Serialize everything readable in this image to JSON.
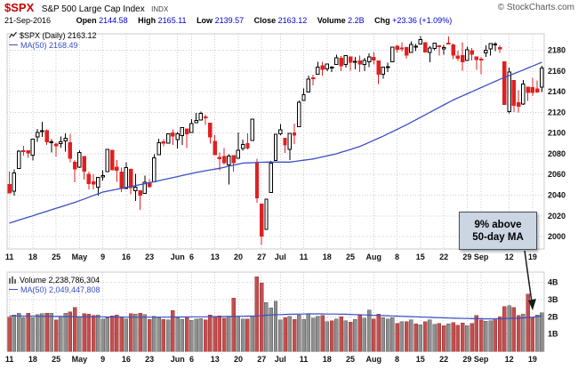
{
  "header": {
    "symbol": "$SPX",
    "name": "S&P 500 Large Cap Index",
    "exchange": "INDX",
    "copyright": "© StockCharts.com",
    "date": "21-Sep-2016",
    "quote": [
      {
        "label": "Open",
        "value": "2144.58"
      },
      {
        "label": "High",
        "value": "2165.11"
      },
      {
        "label": "Low",
        "value": "2139.57"
      },
      {
        "label": "Close",
        "value": "2163.12"
      },
      {
        "label": "Volume",
        "value": "2.2B"
      },
      {
        "label": "Chg",
        "value": "+23.36 (+1.09%)"
      }
    ]
  },
  "price_legend": {
    "series": "$SPX (Daily) 2163.12",
    "ma": "MA(50) 2168.49"
  },
  "volume_legend": {
    "series": "Volume 2,238,786,304",
    "ma": "MA(50) 2,049,447,808"
  },
  "annotation": {
    "line1": "9% above",
    "line2": "50-day MA"
  },
  "colors": {
    "grid": "#cccccc",
    "candle_up": "#000000",
    "candle_down": "#e02020",
    "ma": "#3a4fc4",
    "vol_up": "#8f8f8f",
    "vol_up_edge": "#5a5a5a",
    "vol_down": "#c05050",
    "vol_down_edge": "#a03030",
    "arrow": "#1a1a1a",
    "accent_red": "#cc0000",
    "value_blue": "#0000cc"
  },
  "chart_data": {
    "type": "candlestick",
    "title": "$SPX (Daily) with MA(50) and Volume",
    "last_close": 2163.12,
    "ma50_last": 2168.49,
    "volume_last": 2238786304,
    "volume_ma50_last": 2049447808,
    "x_ticks": [
      {
        "i": 0,
        "label": "11"
      },
      {
        "i": 5,
        "label": "18"
      },
      {
        "i": 10,
        "label": "25"
      },
      {
        "i": 15,
        "label": "May"
      },
      {
        "i": 20,
        "label": "9"
      },
      {
        "i": 25,
        "label": "16"
      },
      {
        "i": 30,
        "label": "23"
      },
      {
        "i": 36,
        "label": "Jun"
      },
      {
        "i": 39,
        "label": "6"
      },
      {
        "i": 44,
        "label": "13"
      },
      {
        "i": 49,
        "label": "20"
      },
      {
        "i": 54,
        "label": "27"
      },
      {
        "i": 58,
        "label": "Jul"
      },
      {
        "i": 63,
        "label": "11"
      },
      {
        "i": 68,
        "label": "18"
      },
      {
        "i": 73,
        "label": "25"
      },
      {
        "i": 78,
        "label": "Aug"
      },
      {
        "i": 83,
        "label": "8"
      },
      {
        "i": 88,
        "label": "15"
      },
      {
        "i": 93,
        "label": "22"
      },
      {
        "i": 98,
        "label": "29"
      },
      {
        "i": 101,
        "label": "Sep"
      },
      {
        "i": 107,
        "label": "12"
      },
      {
        "i": 112,
        "label": "19"
      }
    ],
    "price_axis": {
      "min": 1988,
      "max": 2196,
      "ticks": [
        2000,
        2020,
        2040,
        2060,
        2080,
        2100,
        2120,
        2140,
        2160,
        2180
      ],
      "grid": true
    },
    "volume_axis": {
      "min": 0,
      "max": 4.6,
      "ticks": [
        1,
        2,
        3,
        4
      ],
      "unit": "B"
    },
    "ohlc": [
      [
        2050.2,
        2062.9,
        2041.9,
        2042.0
      ],
      [
        2043.7,
        2065.1,
        2039.7,
        2061.7
      ],
      [
        2065.9,
        2083.2,
        2065.9,
        2082.4
      ],
      [
        2082.9,
        2087.8,
        2078.1,
        2082.8
      ],
      [
        2083.1,
        2083.2,
        2076.3,
        2080.7
      ],
      [
        2078.8,
        2094.7,
        2073.7,
        2094.3
      ],
      [
        2096.1,
        2104.1,
        2091.7,
        2100.8
      ],
      [
        2101.5,
        2111.1,
        2096.3,
        2102.4
      ],
      [
        2102.1,
        2103.8,
        2088.5,
        2091.5
      ],
      [
        2091.5,
        2094.3,
        2081.2,
        2091.6
      ],
      [
        2089.4,
        2090.6,
        2077.5,
        2087.8
      ],
      [
        2089.8,
        2096.9,
        2085.8,
        2091.7
      ],
      [
        2092.3,
        2099.9,
        2082.3,
        2095.2
      ],
      [
        2090.9,
        2099.3,
        2071.6,
        2075.8
      ],
      [
        2071.8,
        2073.9,
        2052.3,
        2065.3
      ],
      [
        2067.2,
        2083.4,
        2066.1,
        2081.4
      ],
      [
        2077.2,
        2077.2,
        2054.9,
        2063.4
      ],
      [
        2060.3,
        2062.6,
        2045.6,
        2051.1
      ],
      [
        2053.0,
        2060.2,
        2045.8,
        2050.6
      ],
      [
        2047.8,
        2057.7,
        2039.5,
        2057.1
      ],
      [
        2057.6,
        2064.2,
        2054.3,
        2058.7
      ],
      [
        2062.6,
        2084.9,
        2062.6,
        2084.4
      ],
      [
        2083.3,
        2083.3,
        2064.5,
        2064.5
      ],
      [
        2067.2,
        2074.0,
        2053.1,
        2064.1
      ],
      [
        2062.5,
        2066.8,
        2043.1,
        2046.6
      ],
      [
        2046.5,
        2071.9,
        2046.5,
        2066.7
      ],
      [
        2065.0,
        2065.7,
        2040.8,
        2047.2
      ],
      [
        2044.4,
        2060.6,
        2034.5,
        2047.6
      ],
      [
        2044.2,
        2044.2,
        2025.9,
        2040.0
      ],
      [
        2041.9,
        2059.0,
        2041.9,
        2052.3
      ],
      [
        2052.2,
        2055.6,
        2047.3,
        2048.0
      ],
      [
        2052.7,
        2079.7,
        2052.7,
        2076.1
      ],
      [
        2078.9,
        2094.7,
        2078.9,
        2090.5
      ],
      [
        2091.4,
        2094.3,
        2087.1,
        2090.1
      ],
      [
        2090.1,
        2099.1,
        2090.1,
        2099.1
      ],
      [
        2100.1,
        2103.5,
        2088.7,
        2097.0
      ],
      [
        2093.9,
        2101.0,
        2085.1,
        2099.3
      ],
      [
        2097.7,
        2105.3,
        2088.6,
        2105.3
      ],
      [
        2104.1,
        2104.1,
        2085.4,
        2099.1
      ],
      [
        2100.8,
        2113.4,
        2100.8,
        2109.4
      ],
      [
        2110.2,
        2119.3,
        2110.2,
        2112.1
      ],
      [
        2112.7,
        2120.6,
        2112.7,
        2119.1
      ],
      [
        2115.7,
        2117.6,
        2107.7,
        2115.5
      ],
      [
        2109.6,
        2109.6,
        2090.0,
        2096.1
      ],
      [
        2091.8,
        2098.1,
        2078.5,
        2079.1
      ],
      [
        2076.7,
        2081.3,
        2064.1,
        2075.3
      ],
      [
        2077.6,
        2085.7,
        2069.8,
        2071.5
      ],
      [
        2069.4,
        2079.6,
        2050.4,
        2078.0
      ],
      [
        2078.2,
        2078.2,
        2062.8,
        2071.2
      ],
      [
        2075.6,
        2100.7,
        2075.6,
        2083.3
      ],
      [
        2085.2,
        2093.7,
        2083.0,
        2088.9
      ],
      [
        2089.8,
        2099.7,
        2084.4,
        2085.5
      ],
      [
        2092.8,
        2113.3,
        2092.8,
        2113.3
      ],
      [
        2071.5,
        2075.4,
        2032.6,
        2037.4
      ],
      [
        2031.5,
        2031.5,
        1991.7,
        2000.5
      ],
      [
        2006.7,
        2036.1,
        2006.7,
        2036.1
      ],
      [
        2042.7,
        2073.0,
        2042.7,
        2070.8
      ],
      [
        2073.7,
        2098.9,
        2073.7,
        2098.9
      ],
      [
        2099.3,
        2108.7,
        2097.9,
        2103.0
      ],
      [
        2095.1,
        2095.1,
        2080.9,
        2088.6
      ],
      [
        2084.2,
        2100.1,
        2074.0,
        2099.7
      ],
      [
        2100.3,
        2109.1,
        2089.4,
        2097.9
      ],
      [
        2106.3,
        2131.7,
        2106.3,
        2129.9
      ],
      [
        2131.7,
        2143.2,
        2131.7,
        2137.2
      ],
      [
        2139.8,
        2155.4,
        2139.8,
        2152.1
      ],
      [
        2153.3,
        2156.5,
        2146.3,
        2152.4
      ],
      [
        2157.0,
        2169.0,
        2157.0,
        2163.8
      ],
      [
        2165.1,
        2169.1,
        2155.8,
        2161.7
      ],
      [
        2162.0,
        2167.4,
        2159.7,
        2166.9
      ],
      [
        2163.8,
        2164.6,
        2159.0,
        2163.8
      ],
      [
        2166.3,
        2175.6,
        2166.3,
        2173.0
      ],
      [
        2172.3,
        2174.4,
        2159.8,
        2165.2
      ],
      [
        2166.5,
        2175.1,
        2163.2,
        2175.0
      ],
      [
        2173.7,
        2173.7,
        2160.2,
        2168.5
      ],
      [
        2168.9,
        2173.5,
        2161.8,
        2169.2
      ],
      [
        2169.8,
        2175.0,
        2159.1,
        2166.6
      ],
      [
        2166.3,
        2172.8,
        2159.9,
        2170.1
      ],
      [
        2169.0,
        2177.1,
        2163.6,
        2173.6
      ],
      [
        2173.2,
        2178.3,
        2166.2,
        2170.8
      ],
      [
        2169.8,
        2169.8,
        2147.6,
        2157.0
      ],
      [
        2157.0,
        2163.8,
        2152.6,
        2163.8
      ],
      [
        2163.2,
        2168.2,
        2159.1,
        2164.3
      ],
      [
        2168.8,
        2182.9,
        2168.8,
        2182.9
      ],
      [
        2183.8,
        2185.4,
        2177.9,
        2180.9
      ],
      [
        2182.2,
        2187.7,
        2178.6,
        2181.7
      ],
      [
        2182.8,
        2183.4,
        2172.0,
        2175.5
      ],
      [
        2178.0,
        2188.5,
        2178.0,
        2185.8
      ],
      [
        2183.7,
        2186.3,
        2179.4,
        2184.1
      ],
      [
        2186.1,
        2193.8,
        2186.1,
        2190.2
      ],
      [
        2187.2,
        2187.2,
        2178.8,
        2178.2
      ],
      [
        2178.0,
        2183.9,
        2168.5,
        2182.2
      ],
      [
        2181.8,
        2187.0,
        2180.3,
        2187.0
      ],
      [
        2184.3,
        2185.2,
        2175.1,
        2183.9
      ],
      [
        2181.6,
        2185.2,
        2175.7,
        2182.6
      ],
      [
        2187.0,
        2193.4,
        2186.8,
        2186.9
      ],
      [
        2185.1,
        2186.7,
        2171.4,
        2175.4
      ],
      [
        2174.4,
        2179.6,
        2169.7,
        2172.5
      ],
      [
        2175.1,
        2187.9,
        2160.4,
        2169.0
      ],
      [
        2170.2,
        2183.5,
        2170.2,
        2180.4
      ],
      [
        2179.5,
        2182.3,
        2170.4,
        2176.1
      ],
      [
        2173.6,
        2173.6,
        2161.4,
        2171.0
      ],
      [
        2171.3,
        2173.6,
        2157.1,
        2170.9
      ],
      [
        2177.5,
        2184.9,
        2173.6,
        2180.0
      ],
      [
        2181.6,
        2186.6,
        2175.1,
        2186.5
      ],
      [
        2185.2,
        2187.9,
        2179.1,
        2186.2
      ],
      [
        2182.8,
        2184.9,
        2177.5,
        2181.3
      ],
      [
        2169.1,
        2169.1,
        2127.8,
        2127.8
      ],
      [
        2120.9,
        2163.3,
        2119.1,
        2159.0
      ],
      [
        2150.9,
        2150.9,
        2120.3,
        2127.0
      ],
      [
        2129.5,
        2141.4,
        2119.9,
        2125.8
      ],
      [
        2128.3,
        2151.3,
        2127.4,
        2147.3
      ],
      [
        2144.6,
        2144.6,
        2131.2,
        2139.2
      ],
      [
        2144.0,
        2153.5,
        2135.9,
        2139.1
      ],
      [
        2142.5,
        2150.9,
        2139.0,
        2139.8
      ],
      [
        2144.58,
        2165.11,
        2139.57,
        2163.12
      ]
    ],
    "ma50": [
      2013.0,
      2014.4,
      2015.9,
      2017.3,
      2018.7,
      2020.1,
      2021.6,
      2023.0,
      2024.4,
      2025.9,
      2027.3,
      2028.7,
      2030.1,
      2031.6,
      2033.0,
      2034.7,
      2036.3,
      2038.0,
      2039.7,
      2041.3,
      2043.0,
      2043.9,
      2044.8,
      2045.7,
      2046.6,
      2047.5,
      2048.4,
      2049.3,
      2050.2,
      2051.1,
      2052.0,
      2053.0,
      2054.0,
      2055.0,
      2056.0,
      2057.0,
      2058.0,
      2059.0,
      2060.0,
      2061.0,
      2062.0,
      2062.8,
      2063.6,
      2064.4,
      2065.2,
      2066.0,
      2067.0,
      2068.0,
      2069.0,
      2070.0,
      2071.0,
      2071.2,
      2071.4,
      2071.6,
      2071.8,
      2072.0,
      2072.0,
      2072.0,
      2072.0,
      2072.0,
      2072.0,
      2072.6,
      2073.2,
      2073.8,
      2074.4,
      2075.0,
      2076.0,
      2077.0,
      2078.0,
      2079.0,
      2080.0,
      2081.4,
      2082.8,
      2084.2,
      2085.6,
      2087.0,
      2089.0,
      2091.0,
      2093.0,
      2095.0,
      2097.0,
      2099.2,
      2101.4,
      2103.6,
      2105.8,
      2108.0,
      2110.4,
      2112.8,
      2115.2,
      2117.6,
      2120.0,
      2122.4,
      2124.8,
      2127.2,
      2129.6,
      2132.0,
      2134.0,
      2136.0,
      2138.0,
      2140.0,
      2142.0,
      2144.0,
      2146.0,
      2148.0,
      2150.0,
      2152.0,
      2153.8,
      2155.6,
      2157.4,
      2159.2,
      2161.0,
      2162.9,
      2164.8,
      2166.6,
      2168.5
    ],
    "volume_b": [
      1.98,
      2.1,
      2.22,
      1.94,
      2.2,
      1.94,
      2.12,
      2.18,
      2.21,
      2.2,
      1.82,
      1.99,
      2.2,
      2.3,
      2.54,
      1.98,
      2.18,
      2.16,
      2.09,
      2.1,
      1.87,
      1.94,
      2.06,
      2.1,
      2.01,
      1.88,
      2.19,
      2.15,
      2.21,
      2.13,
      1.86,
      2.02,
      1.94,
      1.84,
      1.82,
      2.36,
      1.94,
      1.85,
      1.94,
      1.79,
      1.87,
      1.91,
      1.82,
      2.1,
      2.02,
      2.05,
      1.92,
      2.02,
      3.1,
      2.02,
      1.88,
      1.87,
      2.02,
      4.32,
      3.96,
      2.82,
      2.53,
      2.9,
      1.82,
      1.96,
      2.02,
      1.84,
      2.1,
      1.85,
      2.15,
      1.92,
      2.02,
      2.09,
      1.72,
      1.76,
      1.87,
      2.01,
      1.78,
      1.68,
      1.84,
      2.08,
      1.93,
      2.39,
      1.88,
      2.15,
      1.95,
      1.87,
      1.95,
      1.62,
      1.71,
      1.71,
      1.81,
      1.58,
      1.53,
      1.73,
      1.83,
      1.57,
      1.62,
      1.49,
      1.59,
      1.67,
      1.51,
      1.63,
      1.49,
      1.61,
      2.07,
      1.83,
      1.75,
      1.78,
      1.83,
      1.99,
      2.6,
      2.65,
      2.55,
      2.07,
      2.15,
      3.32,
      1.96,
      2.11,
      2.24
    ],
    "volume_ma50_b": [
      2.05,
      2.05,
      2.05,
      2.04,
      2.04,
      2.04,
      2.03,
      2.03,
      2.03,
      2.02,
      2.02,
      2.02,
      2.01,
      2.01,
      2.01,
      2.0,
      2.0,
      2.0,
      2.0,
      2.0,
      2.0,
      1.99,
      1.99,
      1.99,
      1.99,
      1.98,
      1.98,
      1.98,
      1.98,
      1.98,
      1.98,
      1.98,
      1.98,
      1.98,
      1.98,
      1.99,
      1.99,
      1.99,
      2.0,
      2.0,
      2.0,
      2.0,
      2.0,
      2.01,
      2.01,
      2.01,
      2.02,
      2.02,
      2.02,
      2.03,
      2.03,
      2.04,
      2.04,
      2.05,
      2.07,
      2.09,
      2.11,
      2.12,
      2.13,
      2.14,
      2.15,
      2.15,
      2.16,
      2.16,
      2.17,
      2.17,
      2.17,
      2.17,
      2.16,
      2.16,
      2.16,
      2.15,
      2.15,
      2.14,
      2.13,
      2.12,
      2.11,
      2.1,
      2.09,
      2.08,
      2.07,
      2.06,
      2.05,
      2.04,
      2.03,
      2.02,
      2.01,
      2.0,
      1.99,
      1.98,
      1.97,
      1.96,
      1.95,
      1.94,
      1.93,
      1.92,
      1.91,
      1.9,
      1.9,
      1.89,
      1.89,
      1.89,
      1.88,
      1.88,
      1.88,
      1.88,
      1.89,
      1.9,
      1.91,
      1.92,
      1.94,
      1.96,
      1.98,
      2.01,
      2.05
    ]
  }
}
